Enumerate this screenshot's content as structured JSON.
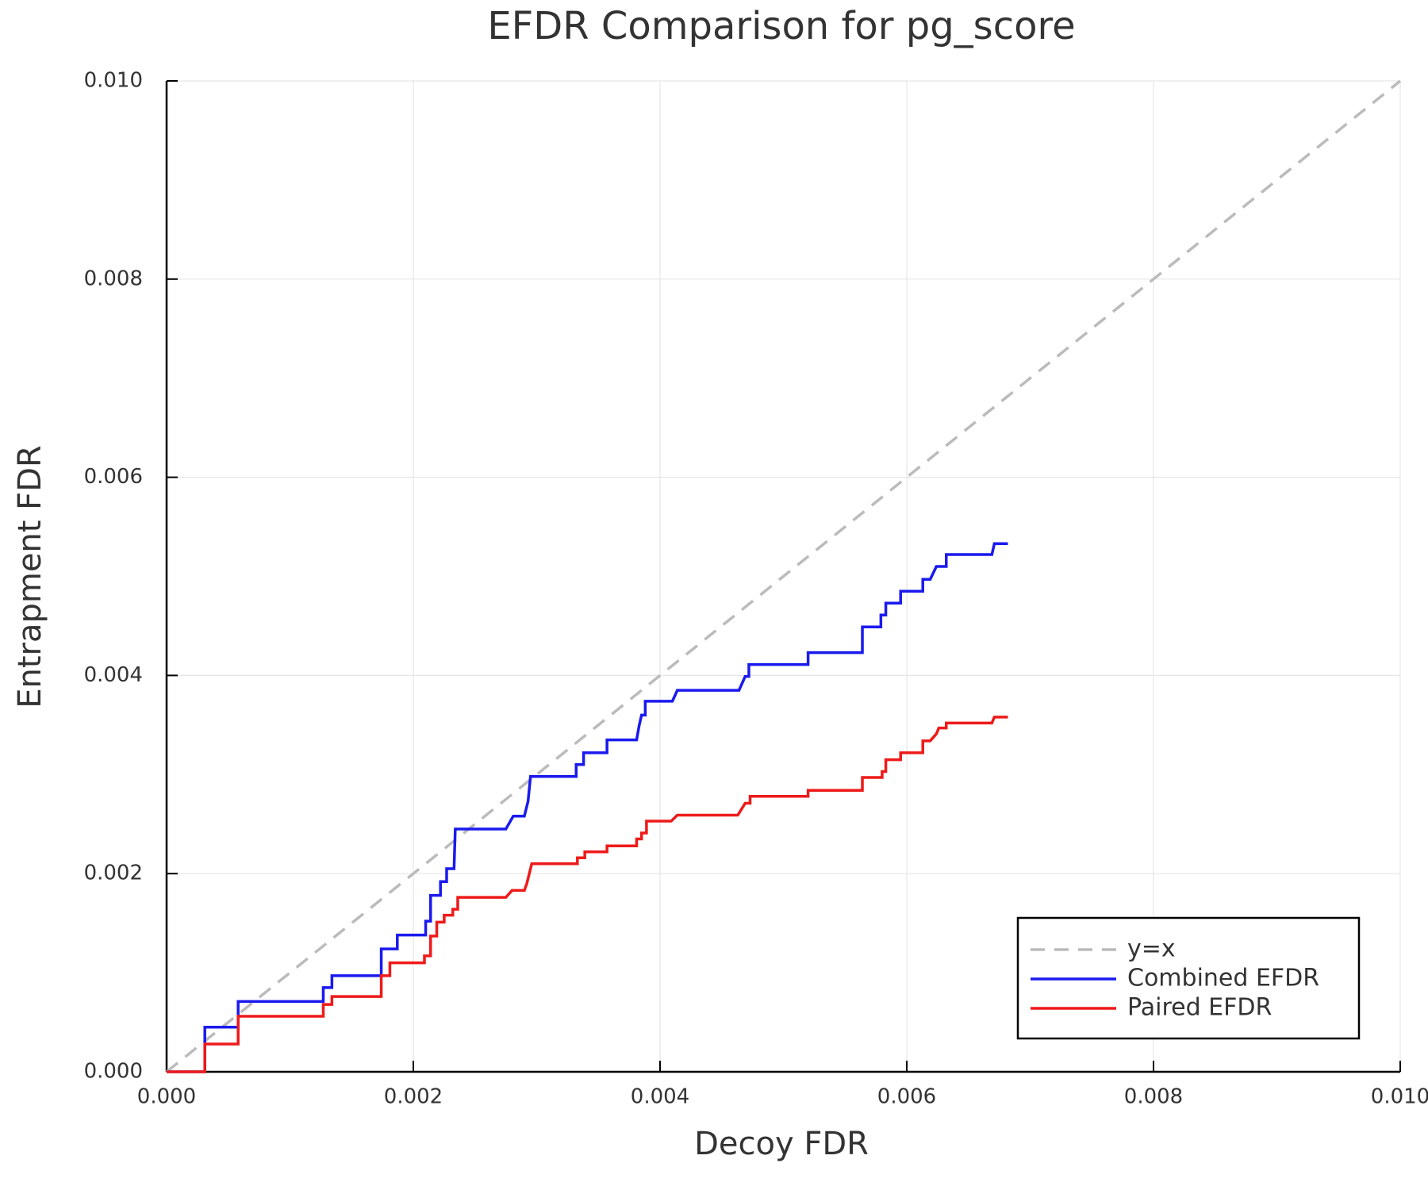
{
  "chart_data": {
    "type": "line",
    "title": "EFDR Comparison for pg_score",
    "x_label": "Decoy FDR",
    "y_label": "Entrapment FDR",
    "xlim": [
      0,
      0.01
    ],
    "ylim": [
      0,
      0.01
    ],
    "xticks": [
      {
        "value": 0,
        "label": "0.000"
      },
      {
        "value": 0.002,
        "label": "0.002"
      },
      {
        "value": 0.004,
        "label": "0.004"
      },
      {
        "value": 0.006,
        "label": "0.006"
      },
      {
        "value": 0.008,
        "label": "0.008"
      },
      {
        "value": 0.01,
        "label": "0.010"
      }
    ],
    "yticks": [
      {
        "value": 0,
        "label": "0.000"
      },
      {
        "value": 0.002,
        "label": "0.002"
      },
      {
        "value": 0.004,
        "label": "0.004"
      },
      {
        "value": 0.006,
        "label": "0.006"
      },
      {
        "value": 0.008,
        "label": "0.008"
      },
      {
        "value": 0.01,
        "label": "0.010"
      }
    ],
    "grid": true,
    "legend": "bottom-right",
    "series": [
      {
        "name": "y=x",
        "color": "#bbbbbb",
        "dashed": true,
        "x": [
          0,
          0.01
        ],
        "values": [
          0,
          0.01
        ]
      },
      {
        "name": "Combined EFDR",
        "color": "#1a1aee",
        "x": [
          0,
          0.00031,
          0.00031,
          0.00058,
          0.00058,
          0.00127,
          0.00127,
          0.00134,
          0.00134,
          0.00174,
          0.00174,
          0.00187,
          0.00187,
          0.0021,
          0.0021,
          0.00214,
          0.00214,
          0.00222,
          0.00222,
          0.00227,
          0.00227,
          0.00233,
          0.00234,
          0.00275,
          0.00281,
          0.0029,
          0.00293,
          0.00295,
          0.00332,
          0.00332,
          0.00338,
          0.00338,
          0.00357,
          0.00357,
          0.00381,
          0.00383,
          0.00385,
          0.00388,
          0.00388,
          0.0041,
          0.00414,
          0.00464,
          0.00469,
          0.00472,
          0.00472,
          0.0052,
          0.0052,
          0.00564,
          0.00564,
          0.00579,
          0.00579,
          0.00583,
          0.00583,
          0.00595,
          0.00595,
          0.00613,
          0.00613,
          0.00619,
          0.00624,
          0.00632,
          0.00632,
          0.00669,
          0.00671,
          0.00682
        ],
        "values": [
          0,
          0,
          0.00045,
          0.00045,
          0.00071,
          0.00071,
          0.00085,
          0.00085,
          0.00097,
          0.00097,
          0.00124,
          0.00124,
          0.00138,
          0.00138,
          0.00152,
          0.00152,
          0.00178,
          0.00178,
          0.00192,
          0.00192,
          0.00205,
          0.00205,
          0.00245,
          0.00245,
          0.00258,
          0.00258,
          0.00273,
          0.00298,
          0.00298,
          0.0031,
          0.0031,
          0.00322,
          0.00322,
          0.00335,
          0.00335,
          0.00349,
          0.0036,
          0.0036,
          0.00374,
          0.00374,
          0.00385,
          0.00385,
          0.00399,
          0.00399,
          0.00411,
          0.00411,
          0.00423,
          0.00423,
          0.00449,
          0.00449,
          0.00461,
          0.00461,
          0.00473,
          0.00473,
          0.00485,
          0.00485,
          0.00497,
          0.00497,
          0.0051,
          0.0051,
          0.00522,
          0.00522,
          0.00533,
          0.00533
        ]
      },
      {
        "name": "Paired EFDR",
        "color": "#ee1a1a",
        "x": [
          0,
          0.00031,
          0.00031,
          0.00058,
          0.00058,
          0.00127,
          0.00127,
          0.00134,
          0.00134,
          0.00174,
          0.00174,
          0.00181,
          0.00181,
          0.00209,
          0.00209,
          0.00214,
          0.00214,
          0.00219,
          0.00219,
          0.00225,
          0.00225,
          0.00232,
          0.00232,
          0.00236,
          0.00236,
          0.00275,
          0.0028,
          0.0029,
          0.00292,
          0.00296,
          0.00333,
          0.00333,
          0.00339,
          0.00339,
          0.00357,
          0.00357,
          0.00381,
          0.00381,
          0.00385,
          0.00385,
          0.00389,
          0.00389,
          0.00409,
          0.00414,
          0.00463,
          0.00469,
          0.00473,
          0.00473,
          0.0052,
          0.0052,
          0.00564,
          0.00564,
          0.0058,
          0.0058,
          0.00583,
          0.00583,
          0.00595,
          0.00595,
          0.00613,
          0.00613,
          0.00619,
          0.00624,
          0.00626,
          0.00632,
          0.00632,
          0.00669,
          0.00671,
          0.00682
        ],
        "values": [
          0,
          0,
          0.00028,
          0.00028,
          0.00056,
          0.00056,
          0.00068,
          0.00068,
          0.00076,
          0.00076,
          0.00097,
          0.00097,
          0.0011,
          0.0011,
          0.00117,
          0.00117,
          0.00137,
          0.00137,
          0.00151,
          0.00151,
          0.00158,
          0.00158,
          0.00164,
          0.00164,
          0.00176,
          0.00176,
          0.00183,
          0.00183,
          0.0019,
          0.0021,
          0.0021,
          0.00216,
          0.00216,
          0.00222,
          0.00222,
          0.00228,
          0.00228,
          0.00235,
          0.00235,
          0.00241,
          0.00241,
          0.00253,
          0.00253,
          0.00259,
          0.00259,
          0.00271,
          0.00271,
          0.00278,
          0.00278,
          0.00284,
          0.00284,
          0.00297,
          0.00297,
          0.00303,
          0.00303,
          0.00315,
          0.00315,
          0.00322,
          0.00322,
          0.00334,
          0.00334,
          0.00341,
          0.00347,
          0.00347,
          0.00352,
          0.00352,
          0.00358,
          0.00358
        ]
      }
    ]
  }
}
